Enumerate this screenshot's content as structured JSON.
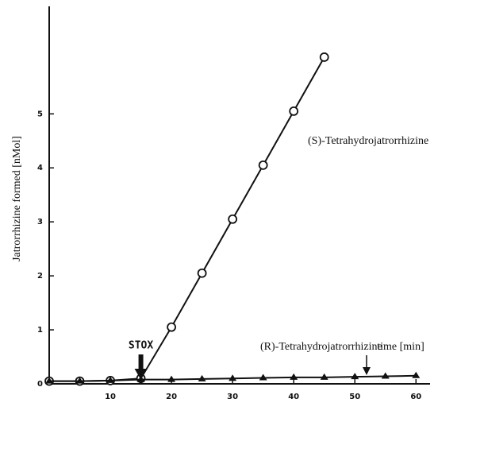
{
  "chart_data": {
    "type": "line",
    "x": [
      0,
      5,
      10,
      15,
      20,
      25,
      30,
      35,
      40,
      45,
      50,
      55,
      60
    ],
    "series": [
      {
        "name": "(S)-Tetrahydrojatrorrhizine",
        "color": "#111111",
        "marker": "circle",
        "values": [
          0.05,
          0.05,
          0.06,
          0.1,
          1.05,
          2.05,
          3.05,
          4.05,
          5.05,
          6.05,
          null,
          null,
          null
        ]
      },
      {
        "name": "(R)-Tetrahydrojatrorrhizine",
        "color": "#111111",
        "marker": "triangle",
        "values": [
          0.05,
          0.05,
          0.06,
          0.08,
          0.08,
          0.09,
          0.1,
          0.11,
          0.12,
          0.12,
          0.13,
          0.14,
          0.15
        ]
      }
    ],
    "xlabel": "time [min]",
    "ylabel": "Jatrorrhizine formed [nMol]",
    "annotation": "STOX",
    "xlim": [
      0,
      62.3
    ],
    "ylim": [
      0,
      6.8
    ],
    "xticks": [
      10,
      20,
      30,
      40,
      50,
      60
    ],
    "yticks": [
      0,
      1,
      2,
      3,
      4,
      5
    ]
  }
}
